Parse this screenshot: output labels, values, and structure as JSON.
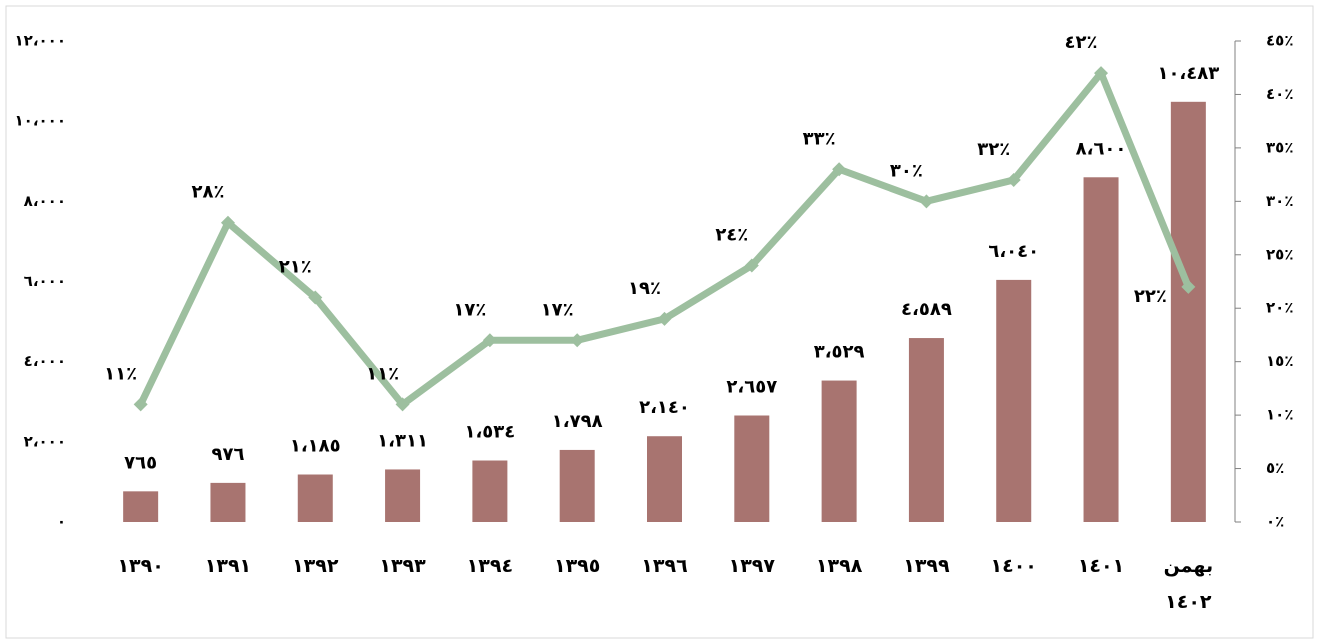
{
  "chart_data": {
    "type": "bar_line",
    "categories": [
      "١٣٩٠",
      "١٣٩١",
      "١٣٩٢",
      "١٣٩٣",
      "١٣٩٤",
      "١٣٩٥",
      "١٣٩٦",
      "١٣٩٧",
      "١٣٩٨",
      "١٣٩٩",
      "١٤٠٠",
      "١٤٠١",
      "بهمن ١٤٠٢"
    ],
    "series": [
      {
        "type": "bar",
        "color": "#a87470",
        "values": [
          765,
          976,
          1185,
          1311,
          1534,
          1798,
          2140,
          2657,
          3529,
          4589,
          6040,
          8600,
          10483
        ],
        "value_labels": [
          "٧٦٥",
          "٩٧٦",
          "١،١٨٥",
          "١،٣١١",
          "١،٥٣٤",
          "١،٧٩٨",
          "٢،١٤٠",
          "٢،٦٥٧",
          "٣،٥٢٩",
          "٤،٥٨٩",
          "٦،٠٤٠",
          "٨،٦٠٠",
          "١٠،٤٨٣"
        ]
      },
      {
        "type": "line",
        "axis": "y2",
        "color": "#9dbf9f",
        "values": [
          11,
          28,
          21,
          11,
          17,
          17,
          19,
          24,
          33,
          30,
          32,
          42,
          22
        ],
        "value_labels": [
          "١١٪",
          "٢٨٪",
          "٢١٪",
          "١١٪",
          "١٧٪",
          "١٧٪",
          "١٩٪",
          "٢٤٪",
          "٣٣٪",
          "٣٠٪",
          "٣٢٪",
          "٤٢٪",
          "٢٢٪"
        ]
      }
    ],
    "ylim": [
      0,
      12000
    ],
    "yticks": [
      {
        "value": 0,
        "label": "٠"
      },
      {
        "value": 2000,
        "label": "٢،٠٠٠"
      },
      {
        "value": 4000,
        "label": "٤،٠٠٠"
      },
      {
        "value": 6000,
        "label": "٦،٠٠٠"
      },
      {
        "value": 8000,
        "label": "٨،٠٠٠"
      },
      {
        "value": 10000,
        "label": "١٠،٠٠٠"
      },
      {
        "value": 12000,
        "label": "١٢،٠٠٠"
      }
    ],
    "y2lim": [
      0,
      45
    ],
    "y2ticks": [
      {
        "value": 0,
        "label": "٠٪"
      },
      {
        "value": 5,
        "label": "٥٪"
      },
      {
        "value": 10,
        "label": "١٠٪"
      },
      {
        "value": 15,
        "label": "١٥٪"
      },
      {
        "value": 20,
        "label": "٢٠٪"
      },
      {
        "value": 25,
        "label": "٢٥٪"
      },
      {
        "value": 30,
        "label": "٣٠٪"
      },
      {
        "value": 35,
        "label": "٣٥٪"
      },
      {
        "value": 40,
        "label": "٤٠٪"
      },
      {
        "value": 45,
        "label": "٤٥٪"
      }
    ]
  }
}
